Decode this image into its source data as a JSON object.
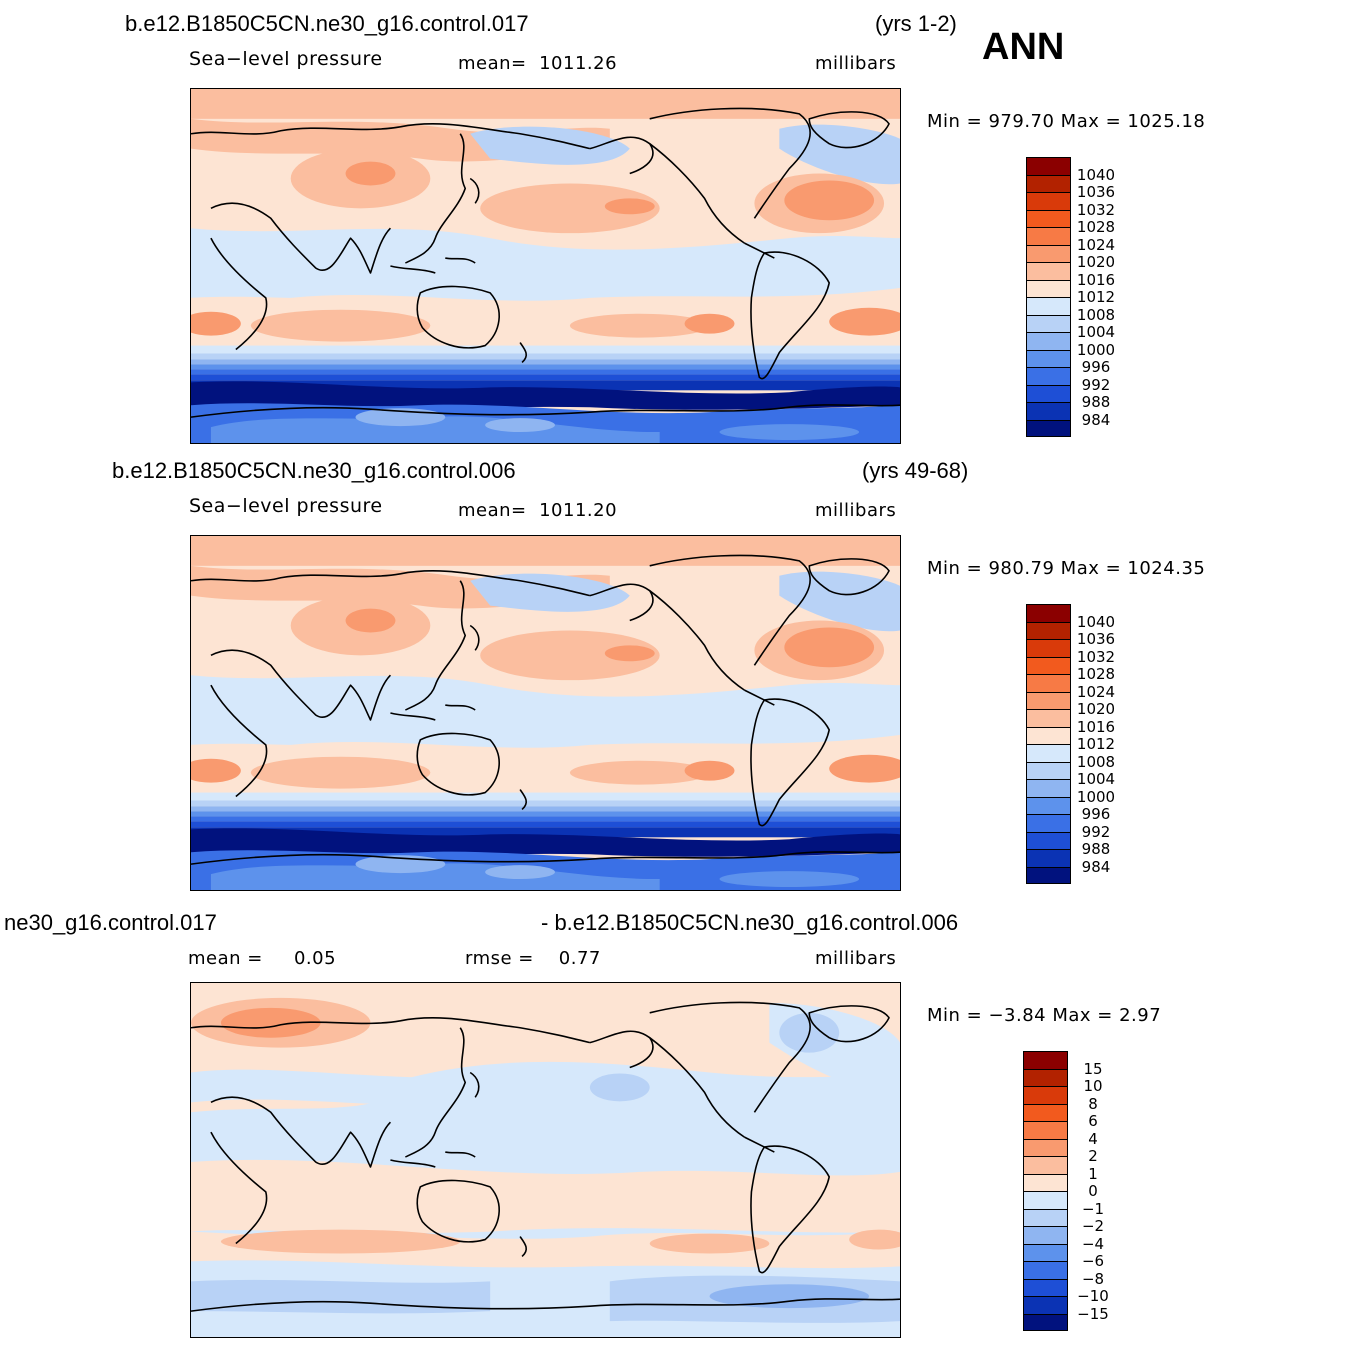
{
  "season": "ANN",
  "panels": [
    {
      "case": "b.e12.B1850C5CN.ne30_g16.control.017",
      "years": "(yrs 1-2)",
      "variable": "Sea−level pressure",
      "stat_left": "mean=",
      "stat_left_value": "1011.26",
      "units": "millibars",
      "minmax": "Min  =  979.70  Max  =  1025.18"
    },
    {
      "case": "b.e12.B1850C5CN.ne30_g16.control.006",
      "years": "(yrs 49-68)",
      "variable": "Sea−level pressure",
      "stat_left": "mean=",
      "stat_left_value": "1011.20",
      "units": "millibars",
      "minmax": "Min  =  980.79  Max  =  1024.35"
    },
    {
      "case_left": "ne30_g16.control.017",
      "case_right": "- b.e12.B1850C5CN.ne30_g16.control.006",
      "stat_left": "mean  =",
      "stat_left_value": "0.05",
      "stat_mid": "rmse  =",
      "stat_mid_value": "0.77",
      "units": "millibars",
      "minmax": "Min  =    −3.84  Max  =      2.97"
    }
  ],
  "colorbar_abs": {
    "labels": [
      "1040",
      "1036",
      "1032",
      "1028",
      "1024",
      "1020",
      "1016",
      "1012",
      "1008",
      "1004",
      "1000",
      "996",
      "992",
      "988",
      "984"
    ],
    "colors": [
      "#8b0000",
      "#b22200",
      "#d93a0a",
      "#f25a1e",
      "#f77a45",
      "#f99a6f",
      "#fbbe9f",
      "#fde4d3",
      "#d6e8fb",
      "#b8d2f6",
      "#8fb5f1",
      "#5d92ec",
      "#3a70e6",
      "#1e4fd6",
      "#0b33b4",
      "#01127e"
    ]
  },
  "colorbar_diff": {
    "labels": [
      "15",
      "10",
      "8",
      "6",
      "4",
      "2",
      "1",
      "0",
      "−1",
      "−2",
      "−4",
      "−6",
      "−8",
      "−10",
      "−15"
    ],
    "colors": [
      "#8b0000",
      "#b22200",
      "#d93a0a",
      "#f25a1e",
      "#f77a45",
      "#f99a6f",
      "#fbbe9f",
      "#fde4d3",
      "#d6e8fb",
      "#b8d2f6",
      "#8fb5f1",
      "#5d92ec",
      "#3a70e6",
      "#1e4fd6",
      "#0b33b4",
      "#01127e"
    ]
  }
}
